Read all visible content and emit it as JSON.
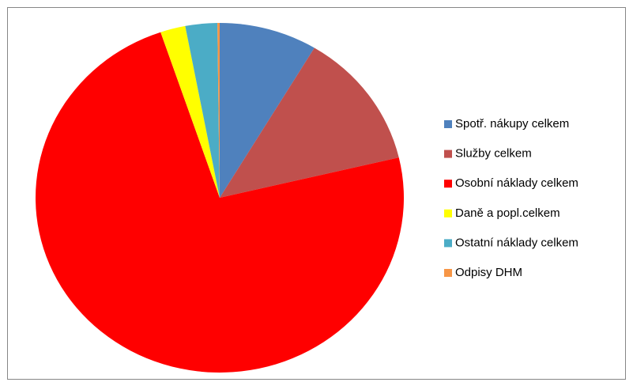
{
  "chart_data": {
    "type": "pie",
    "categories": [
      "Spotř. nákupy celkem",
      "Služby celkem",
      "Osobní náklady celkem",
      "Daně a popl.celkem",
      "Ostatní náklady celkem",
      "Odpisy DHM"
    ],
    "values": [
      8.6,
      12.7,
      73.5,
      2.2,
      2.8,
      0.2
    ],
    "colors": [
      "#4f81bd",
      "#c0504d",
      "#ff0000",
      "#ffff00",
      "#4bacc6",
      "#f79646"
    ],
    "legend": "right"
  }
}
